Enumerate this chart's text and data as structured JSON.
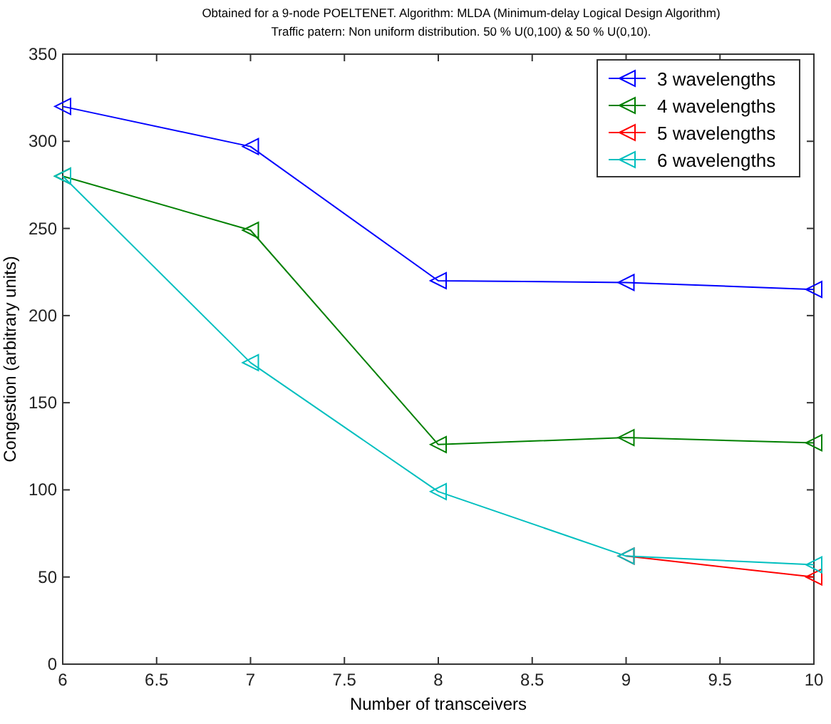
{
  "chart_data": {
    "type": "line",
    "title": "Obtained for a 9-node POELTENET. Algorithm: MLDA (Minimum-delay Logical Design Algorithm)",
    "subtitle": "Traffic patern: Non uniform distribution. 50 % U(0,100) & 50 % U(0,10).",
    "xlabel": "Number of transceivers",
    "ylabel": "Congestion (arbitrary units)",
    "x": [
      6,
      7,
      8,
      9,
      10
    ],
    "xlim": [
      6,
      10
    ],
    "xticks": [
      6,
      6.5,
      7,
      7.5,
      8,
      8.5,
      9,
      9.5,
      10
    ],
    "ylim": [
      0,
      350
    ],
    "yticks": [
      0,
      50,
      100,
      150,
      200,
      250,
      300,
      350
    ],
    "marker": "triangle",
    "legend": "top right",
    "series": [
      {
        "name": "3 wavelengths",
        "color": "#0000ff",
        "values": [
          320,
          297,
          220,
          219,
          215
        ]
      },
      {
        "name": "4 wavelengths",
        "color": "#008000",
        "values": [
          280,
          249,
          126,
          130,
          127
        ]
      },
      {
        "name": "5 wavelengths",
        "color": "#ff0000",
        "values": [
          null,
          null,
          null,
          62,
          50
        ]
      },
      {
        "name": "6 wavelengths",
        "color": "#00bfbf",
        "values": [
          280,
          173,
          99,
          62,
          57
        ]
      }
    ]
  }
}
